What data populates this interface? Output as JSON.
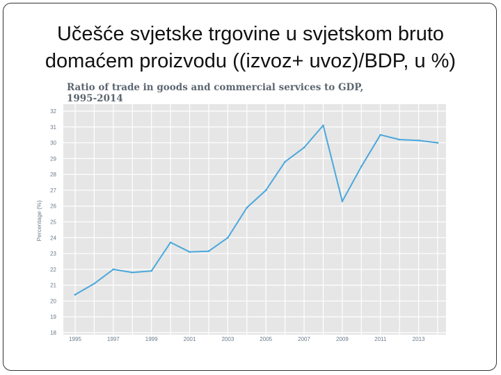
{
  "slide": {
    "title_line1": "Učešće svjetske trgovine u svjetskom bruto",
    "title_line2": "domaćem proizvodu ((izvoz+ uvoz)/BDP, u %)"
  },
  "chart_data": {
    "type": "line",
    "title_line1": "Ratio of trade in goods and commercial services to GDP,",
    "title_line2": "1995-2014",
    "ylabel": "Percentage (%)",
    "xlabel": "",
    "ylim": [
      18,
      32
    ],
    "xlim": [
      1995,
      2014
    ],
    "yticks": [
      18,
      19,
      20,
      21,
      22,
      23,
      24,
      25,
      26,
      27,
      28,
      29,
      30,
      31,
      32
    ],
    "xticks": [
      1995,
      1997,
      1999,
      2001,
      2003,
      2005,
      2007,
      2009,
      2011,
      2013
    ],
    "grid": true,
    "line_color": "#4aa8dc",
    "series": [
      {
        "x": [
          1995,
          1996,
          1997,
          1998,
          1999,
          2000,
          2001,
          2002,
          2003,
          2004,
          2005,
          2006,
          2007,
          2008,
          2009,
          2010,
          2011,
          2012,
          2013,
          2014
        ],
        "values": [
          20.4,
          21.1,
          22.0,
          21.8,
          21.9,
          23.7,
          23.1,
          23.15,
          24.0,
          25.9,
          27.0,
          28.8,
          29.7,
          31.1,
          26.3,
          28.5,
          30.5,
          30.2,
          30.15,
          30.0
        ]
      }
    ]
  }
}
